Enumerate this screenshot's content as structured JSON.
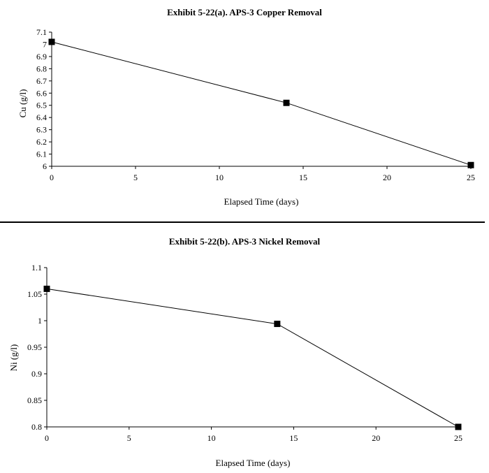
{
  "chart_data": [
    {
      "type": "line",
      "title": "Exhibit 5-22(a). APS-3 Copper Removal",
      "xlabel": "Elapsed Time (days)",
      "ylabel": "Cu (g/l)",
      "xlim": [
        0,
        25
      ],
      "ylim": [
        6,
        7.1
      ],
      "xticks": [
        "0",
        "5",
        "10",
        "15",
        "20",
        "25"
      ],
      "yticks": [
        "6",
        "6.1",
        "6.2",
        "6.3",
        "6.4",
        "6.5",
        "6.6",
        "6.7",
        "6.8",
        "6.9",
        "7",
        "7.1"
      ],
      "series": [
        {
          "x": [
            0,
            14,
            25
          ],
          "values": [
            7.02,
            6.52,
            6.01
          ]
        }
      ],
      "grid": false,
      "marker": "square"
    },
    {
      "type": "line",
      "title": "Exhibit 5-22(b). APS-3 Nickel Removal",
      "xlabel": "Elapsed Time (days)",
      "ylabel": "Ni (g/l)",
      "xlim": [
        0,
        25
      ],
      "ylim": [
        0.8,
        1.1
      ],
      "xticks": [
        "0",
        "5",
        "10",
        "15",
        "20",
        "25"
      ],
      "yticks": [
        "0.8",
        "0.85",
        "0.9",
        "0.95",
        "1",
        "1.05",
        "1.1"
      ],
      "series": [
        {
          "x": [
            0,
            14,
            25
          ],
          "values": [
            1.06,
            0.994,
            0.8
          ]
        }
      ],
      "grid": false,
      "marker": "square"
    }
  ]
}
